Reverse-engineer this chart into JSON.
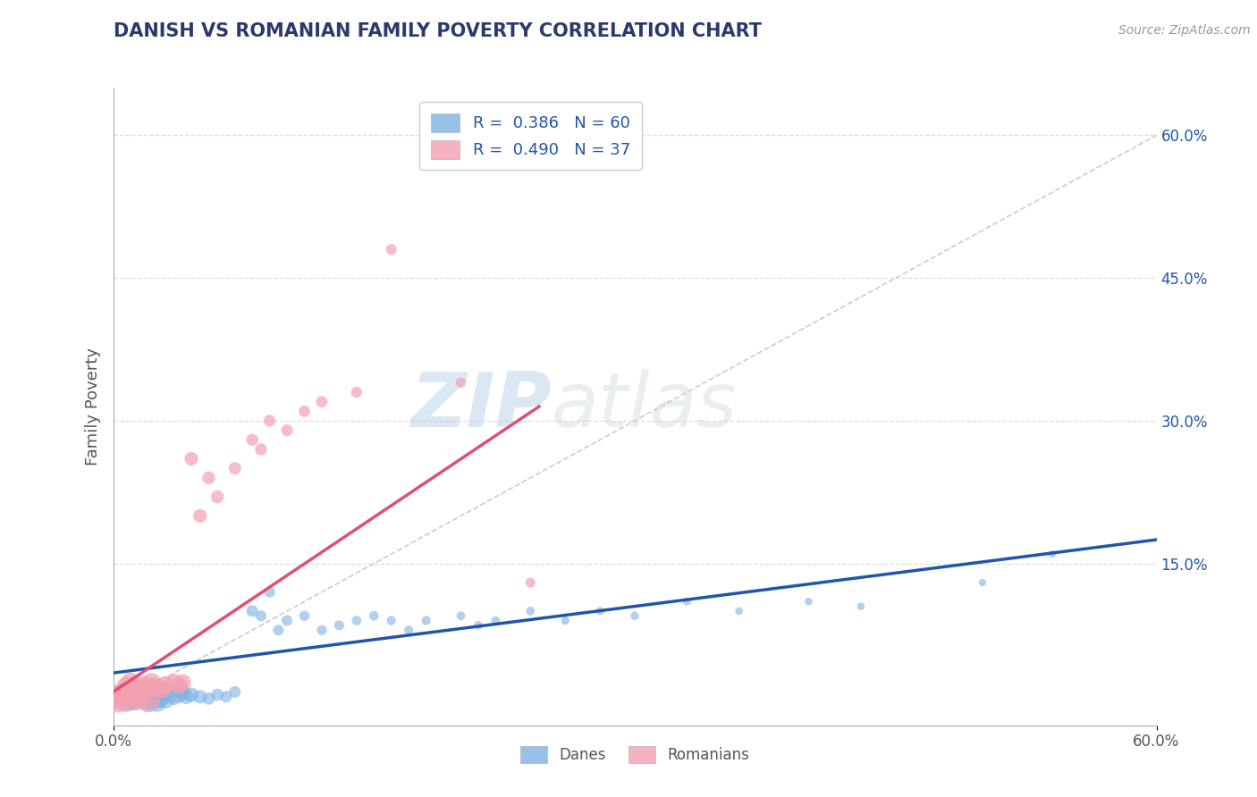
{
  "title": "DANISH VS ROMANIAN FAMILY POVERTY CORRELATION CHART",
  "source": "Source: ZipAtlas.com",
  "xlabel": "",
  "ylabel": "Family Poverty",
  "xlim": [
    0.0,
    0.6
  ],
  "ylim": [
    -0.02,
    0.65
  ],
  "ytick_right": [
    0.15,
    0.3,
    0.45,
    0.6
  ],
  "ytick_right_labels": [
    "15.0%",
    "30.0%",
    "45.0%",
    "60.0%"
  ],
  "danish_R": 0.386,
  "danish_N": 60,
  "romanian_R": 0.49,
  "romanian_N": 37,
  "blue_color": "#7EB2E4",
  "pink_color": "#F4A0B0",
  "blue_line_color": "#2255AA",
  "pink_line_color": "#E05070",
  "legend_blue_label": "R =  0.386   N = 60",
  "legend_pink_label": "R =  0.490   N = 37",
  "legend_bottom_blue": "Danes",
  "legend_bottom_pink": "Romanians",
  "watermark_zip": "ZIP",
  "watermark_atlas": "atlas",
  "background_color": "#FFFFFF",
  "grid_color": "#DDDDDD",
  "title_color": "#2B3A6B",
  "axis_label_color": "#555555",
  "danish_x": [
    0.005,
    0.008,
    0.01,
    0.01,
    0.01,
    0.012,
    0.013,
    0.015,
    0.015,
    0.015,
    0.018,
    0.018,
    0.02,
    0.02,
    0.02,
    0.02,
    0.022,
    0.022,
    0.025,
    0.025,
    0.025,
    0.028,
    0.03,
    0.03,
    0.035,
    0.038,
    0.04,
    0.042,
    0.045,
    0.05,
    0.055,
    0.06,
    0.065,
    0.07,
    0.08,
    0.085,
    0.09,
    0.095,
    0.1,
    0.11,
    0.12,
    0.13,
    0.14,
    0.15,
    0.16,
    0.17,
    0.18,
    0.2,
    0.21,
    0.22,
    0.24,
    0.26,
    0.28,
    0.3,
    0.33,
    0.36,
    0.4,
    0.43,
    0.5,
    0.54
  ],
  "danish_y": [
    0.01,
    0.005,
    0.008,
    0.012,
    0.015,
    0.01,
    0.005,
    0.008,
    0.012,
    0.018,
    0.01,
    0.015,
    0.005,
    0.008,
    0.012,
    0.018,
    0.01,
    0.015,
    0.005,
    0.008,
    0.015,
    0.01,
    0.008,
    0.015,
    0.01,
    0.012,
    0.015,
    0.01,
    0.012,
    0.01,
    0.008,
    0.012,
    0.01,
    0.015,
    0.1,
    0.095,
    0.12,
    0.08,
    0.09,
    0.095,
    0.08,
    0.085,
    0.09,
    0.095,
    0.09,
    0.08,
    0.09,
    0.095,
    0.085,
    0.09,
    0.1,
    0.09,
    0.1,
    0.095,
    0.11,
    0.1,
    0.11,
    0.105,
    0.13,
    0.16
  ],
  "danish_sizes": [
    300,
    280,
    260,
    200,
    180,
    200,
    220,
    200,
    180,
    160,
    200,
    180,
    300,
    280,
    200,
    160,
    200,
    160,
    280,
    240,
    180,
    200,
    250,
    200,
    180,
    160,
    160,
    140,
    140,
    120,
    100,
    100,
    90,
    90,
    90,
    80,
    80,
    75,
    75,
    70,
    65,
    65,
    60,
    60,
    55,
    55,
    55,
    50,
    50,
    50,
    50,
    45,
    45,
    45,
    40,
    40,
    38,
    38,
    35,
    35
  ],
  "romanian_x": [
    0.003,
    0.005,
    0.008,
    0.008,
    0.01,
    0.01,
    0.01,
    0.012,
    0.013,
    0.015,
    0.015,
    0.017,
    0.018,
    0.02,
    0.02,
    0.022,
    0.025,
    0.028,
    0.03,
    0.035,
    0.038,
    0.04,
    0.045,
    0.05,
    0.055,
    0.06,
    0.07,
    0.08,
    0.085,
    0.09,
    0.1,
    0.11,
    0.12,
    0.14,
    0.16,
    0.2,
    0.24
  ],
  "romanian_y": [
    0.008,
    0.01,
    0.015,
    0.02,
    0.008,
    0.015,
    0.025,
    0.012,
    0.02,
    0.01,
    0.018,
    0.022,
    0.015,
    0.008,
    0.02,
    0.025,
    0.02,
    0.018,
    0.022,
    0.025,
    0.022,
    0.025,
    0.26,
    0.2,
    0.24,
    0.22,
    0.25,
    0.28,
    0.27,
    0.3,
    0.29,
    0.31,
    0.32,
    0.33,
    0.48,
    0.34,
    0.13
  ],
  "romanian_sizes": [
    500,
    450,
    350,
    300,
    350,
    280,
    250,
    300,
    250,
    350,
    280,
    230,
    250,
    400,
    280,
    230,
    250,
    220,
    220,
    200,
    180,
    180,
    120,
    120,
    110,
    110,
    100,
    95,
    95,
    90,
    90,
    85,
    85,
    80,
    75,
    70,
    65
  ]
}
